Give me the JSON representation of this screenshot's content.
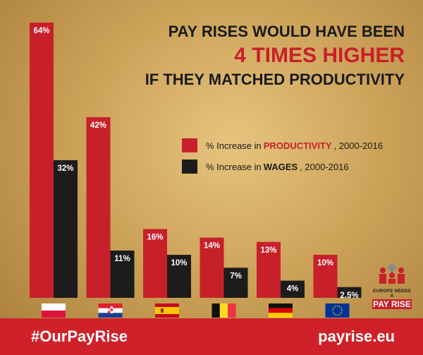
{
  "title": {
    "line1": "PAY RISES WOULD HAVE BEEN",
    "line2": "4 TIMES HIGHER",
    "line3": "IF THEY MATCHED PRODUCTIVITY"
  },
  "legend": {
    "productivity_prefix": "% Increase in",
    "productivity_keyword": "PRODUCTIVITY",
    "productivity_suffix": ", 2000-2016",
    "wages_prefix": "% Increase in",
    "wages_keyword": "WAGES",
    "wages_suffix": ", 2000-2016"
  },
  "colors": {
    "productivity": "#c8202a",
    "wages": "#1c1c1c",
    "footer": "#cf2129"
  },
  "chart_data": {
    "type": "bar",
    "categories": [
      "Poland",
      "Croatia",
      "Spain",
      "Belgium",
      "Germany",
      "European Union"
    ],
    "flags": [
      "poland-flag",
      "croatia-flag",
      "spain-flag",
      "belgium-flag",
      "germany-flag",
      "eu-flag"
    ],
    "series": [
      {
        "name": "% Increase in PRODUCTIVITY, 2000-2016",
        "values": [
          64,
          42,
          16,
          14,
          13,
          10
        ],
        "labels": [
          "64%",
          "42%",
          "16%",
          "14%",
          "13%",
          "10%"
        ]
      },
      {
        "name": "% Increase in WAGES, 2000-2016",
        "values": [
          32,
          11,
          10,
          7,
          4,
          2.5
        ],
        "labels": [
          "32%",
          "11%",
          "10%",
          "7%",
          "4%",
          "2.5%"
        ]
      }
    ],
    "ylim": [
      0,
      64
    ]
  },
  "footer": {
    "hashtag": "#OurPayRise",
    "website": "payrise.eu"
  },
  "brand": {
    "line1": "EUROPE NEEDS A",
    "line2": "PAY RISE"
  }
}
